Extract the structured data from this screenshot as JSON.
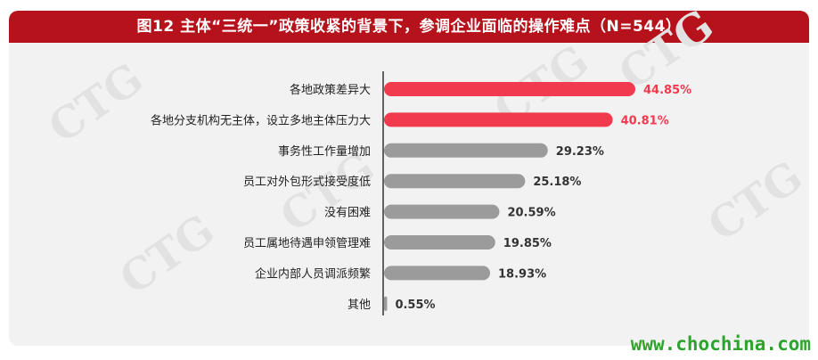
{
  "title": "图12 主体“三统一”政策收紧的背景下，参调企业面临的操作难点（N=544）",
  "watermark": "CTG",
  "footer_url": "www.chochina.com",
  "colors": {
    "highlight": "#f23a4f",
    "normal": "#9b9b9b",
    "title_bg": "#b5121b",
    "url": "#2ea32e"
  },
  "chart_data": {
    "type": "bar",
    "orientation": "horizontal",
    "title": "图12 主体“三统一”政策收紧的背景下，参调企业面临的操作难点（N=544）",
    "categories": [
      "各地政策差异大",
      "各地分支机构无主体，设立多地主体压力大",
      "事务性工作量增加",
      "员工对外包形式接受度低",
      "没有困难",
      "员工属地待遇申领管理难",
      "企业内部人员调派频繁",
      "其他"
    ],
    "values": [
      44.85,
      40.81,
      29.23,
      25.18,
      20.59,
      19.85,
      18.93,
      0.55
    ],
    "value_labels": [
      "44.85%",
      "40.81%",
      "29.23%",
      "25.18%",
      "20.59%",
      "19.85%",
      "18.93%",
      "0.55%"
    ],
    "highlighted": [
      true,
      true,
      false,
      false,
      false,
      false,
      false,
      false
    ],
    "unit": "%"
  }
}
